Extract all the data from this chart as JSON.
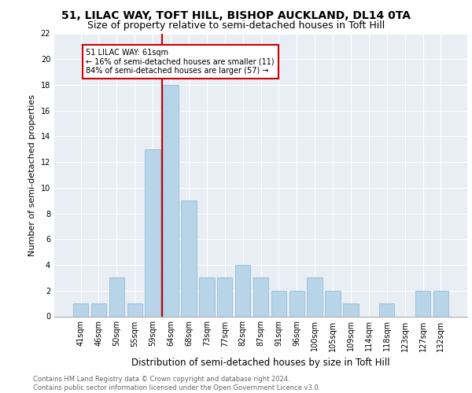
{
  "title1": "51, LILAC WAY, TOFT HILL, BISHOP AUCKLAND, DL14 0TA",
  "title2": "Size of property relative to semi-detached houses in Toft Hill",
  "xlabel": "Distribution of semi-detached houses by size in Toft Hill",
  "ylabel": "Number of semi-detached properties",
  "footnote": "Contains HM Land Registry data © Crown copyright and database right 2024.\nContains public sector information licensed under the Open Government Licence v3.0.",
  "categories": [
    "41sqm",
    "46sqm",
    "50sqm",
    "55sqm",
    "59sqm",
    "64sqm",
    "68sqm",
    "73sqm",
    "77sqm",
    "82sqm",
    "87sqm",
    "91sqm",
    "96sqm",
    "100sqm",
    "105sqm",
    "109sqm",
    "114sqm",
    "118sqm",
    "123sqm",
    "127sqm",
    "132sqm"
  ],
  "values": [
    1,
    1,
    3,
    1,
    13,
    18,
    9,
    3,
    3,
    4,
    3,
    2,
    2,
    3,
    2,
    1,
    0,
    1,
    0,
    2,
    2
  ],
  "bar_color": "#b8d4e8",
  "bar_edgecolor": "#8ab4ce",
  "property_sqm": 61,
  "annotation_text": "51 LILAC WAY: 61sqm\n← 16% of semi-detached houses are smaller (11)\n84% of semi-detached houses are larger (57) →",
  "annotation_box_edgecolor": "#cc0000",
  "vline_color": "#cc0000",
  "ylim": [
    0,
    22
  ],
  "yticks": [
    0,
    2,
    4,
    6,
    8,
    10,
    12,
    14,
    16,
    18,
    20,
    22
  ],
  "bg_color": "#e8eef4",
  "title_fontsize": 10,
  "subtitle_fontsize": 9,
  "tick_fontsize": 7,
  "ylabel_fontsize": 8,
  "xlabel_fontsize": 8.5,
  "footnote_fontsize": 6,
  "annot_fontsize": 7
}
